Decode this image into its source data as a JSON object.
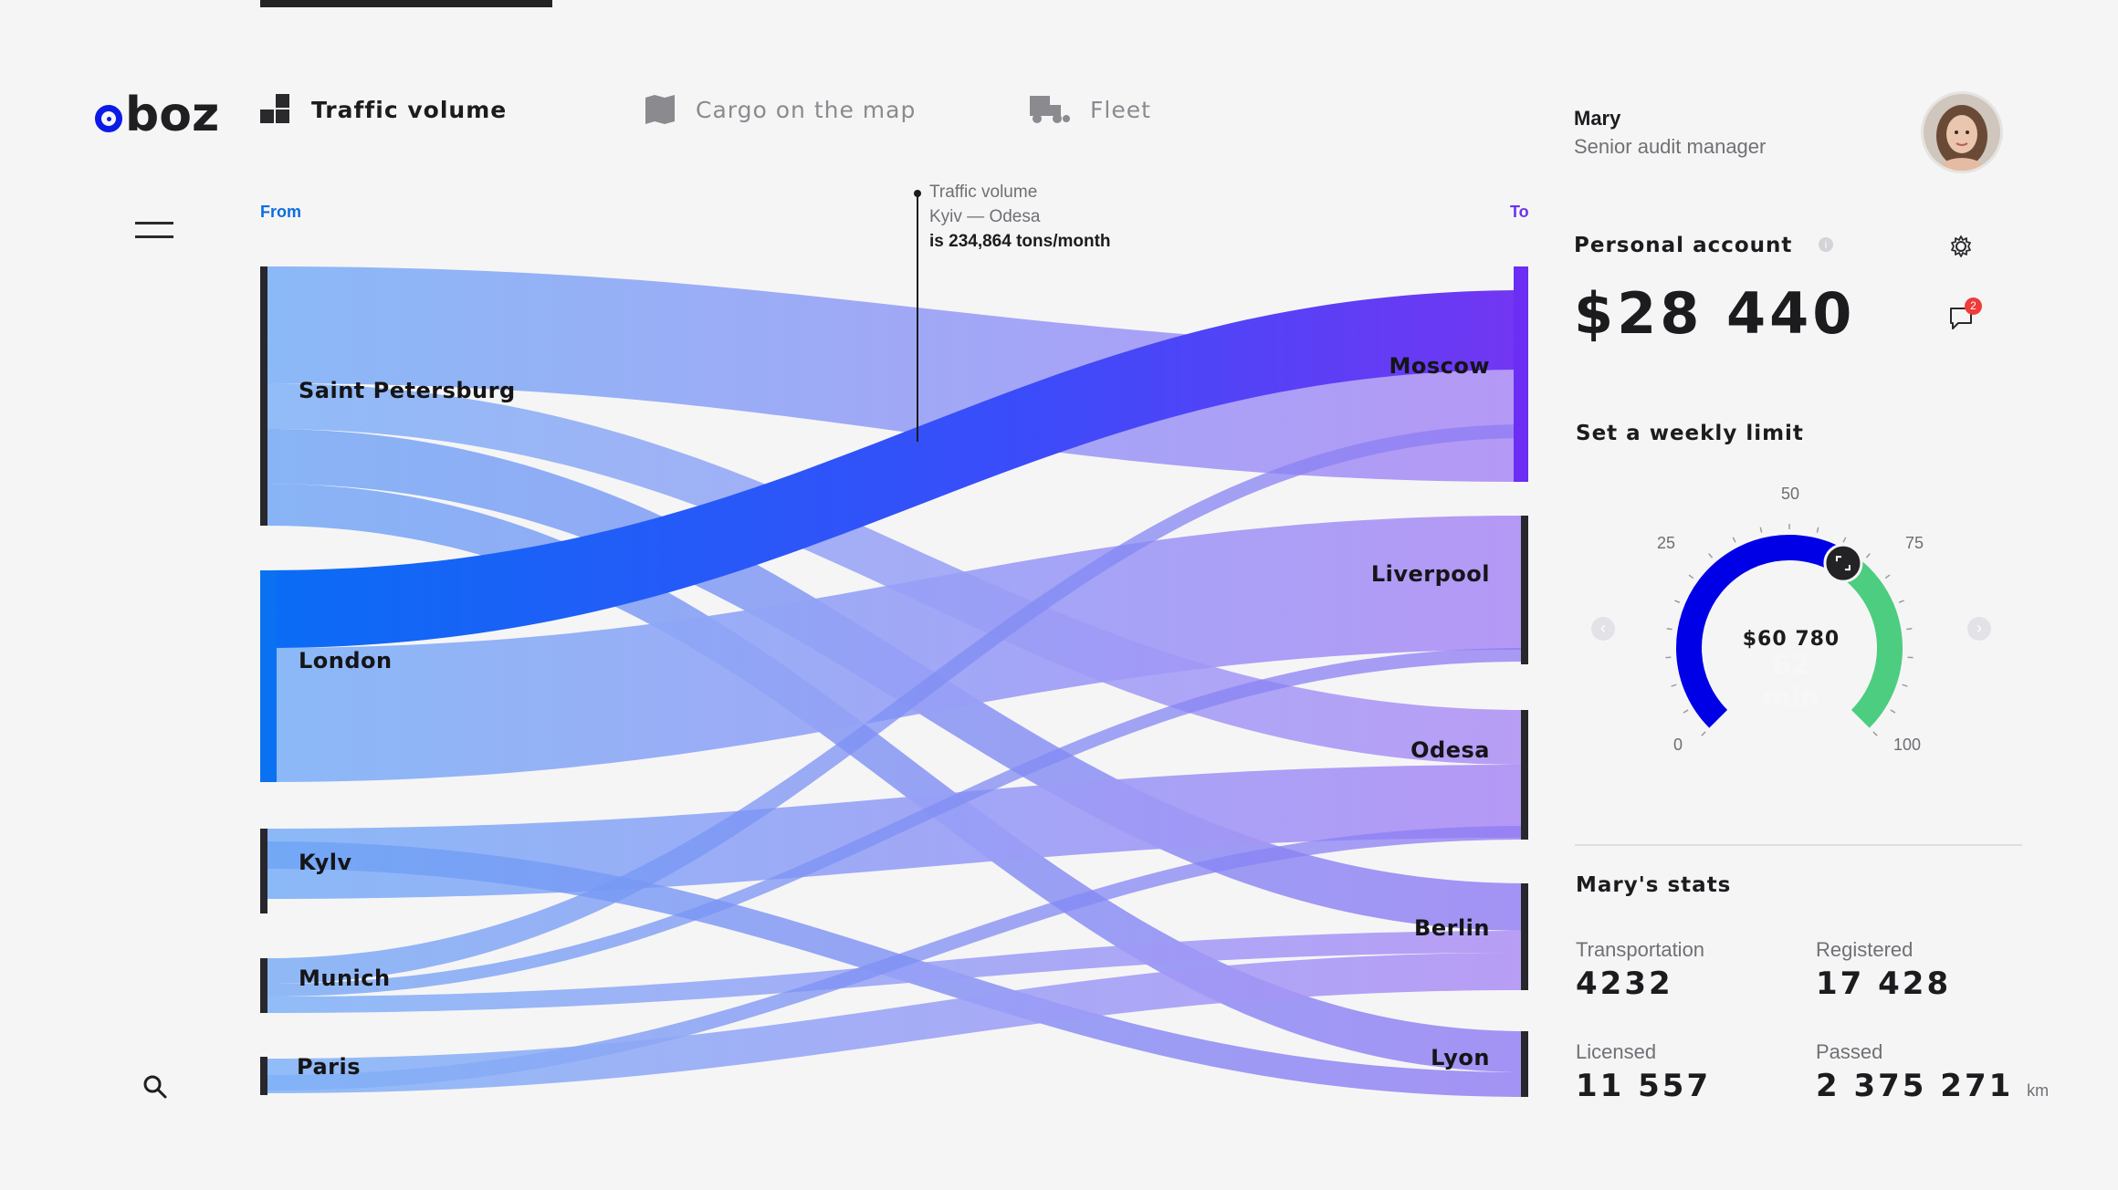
{
  "app": {
    "logo": "oboz"
  },
  "nav": {
    "tabs": [
      {
        "label": "Traffic volume",
        "icon": "blocks-icon",
        "active": true
      },
      {
        "label": "Cargo on the map",
        "icon": "map-icon",
        "active": false
      },
      {
        "label": "Fleet",
        "icon": "truck-icon",
        "active": false
      }
    ]
  },
  "sankey": {
    "from_label": "From",
    "to_label": "To",
    "sources": [
      "Saint Petersburg",
      "London",
      "Kylv",
      "Munich",
      "Paris"
    ],
    "targets": [
      "Moscow",
      "Liverpool",
      "Odesa",
      "Berlin",
      "Lyon"
    ],
    "tooltip": {
      "title": "Traffic volume",
      "route": "Kyiv — Odesa",
      "value": "is 234,864 tons/month"
    }
  },
  "user": {
    "name": "Mary",
    "role": "Senior audit manager"
  },
  "account": {
    "title": "Personal account",
    "balance": "$28 440",
    "notifications": "2"
  },
  "limit": {
    "title": "Set a weekly limit",
    "ticks": [
      "0",
      "25",
      "50",
      "75",
      "100"
    ],
    "value_text": "$60 780",
    "ghost_text": "62 min",
    "level_percent": 62
  },
  "stats": {
    "title": "Mary's stats",
    "transportation_label": "Transportation",
    "transportation_value": "4232",
    "registered_label": "Registered",
    "registered_value": "17 428",
    "licensed_label": "Licensed",
    "licensed_value": "11 557",
    "passed_label": "Passed",
    "passed_value": "2 375 271",
    "passed_unit": "km"
  },
  "colors": {
    "brand_blue": "#0b1be6",
    "gauge_blue": "#0000e6",
    "gauge_green": "#4ccd7f",
    "flow_light": "#7fb2f7",
    "flow_purple": "#a98cf5",
    "flow_strong": "#1c5cf5",
    "badge_red": "#f03b3b"
  }
}
